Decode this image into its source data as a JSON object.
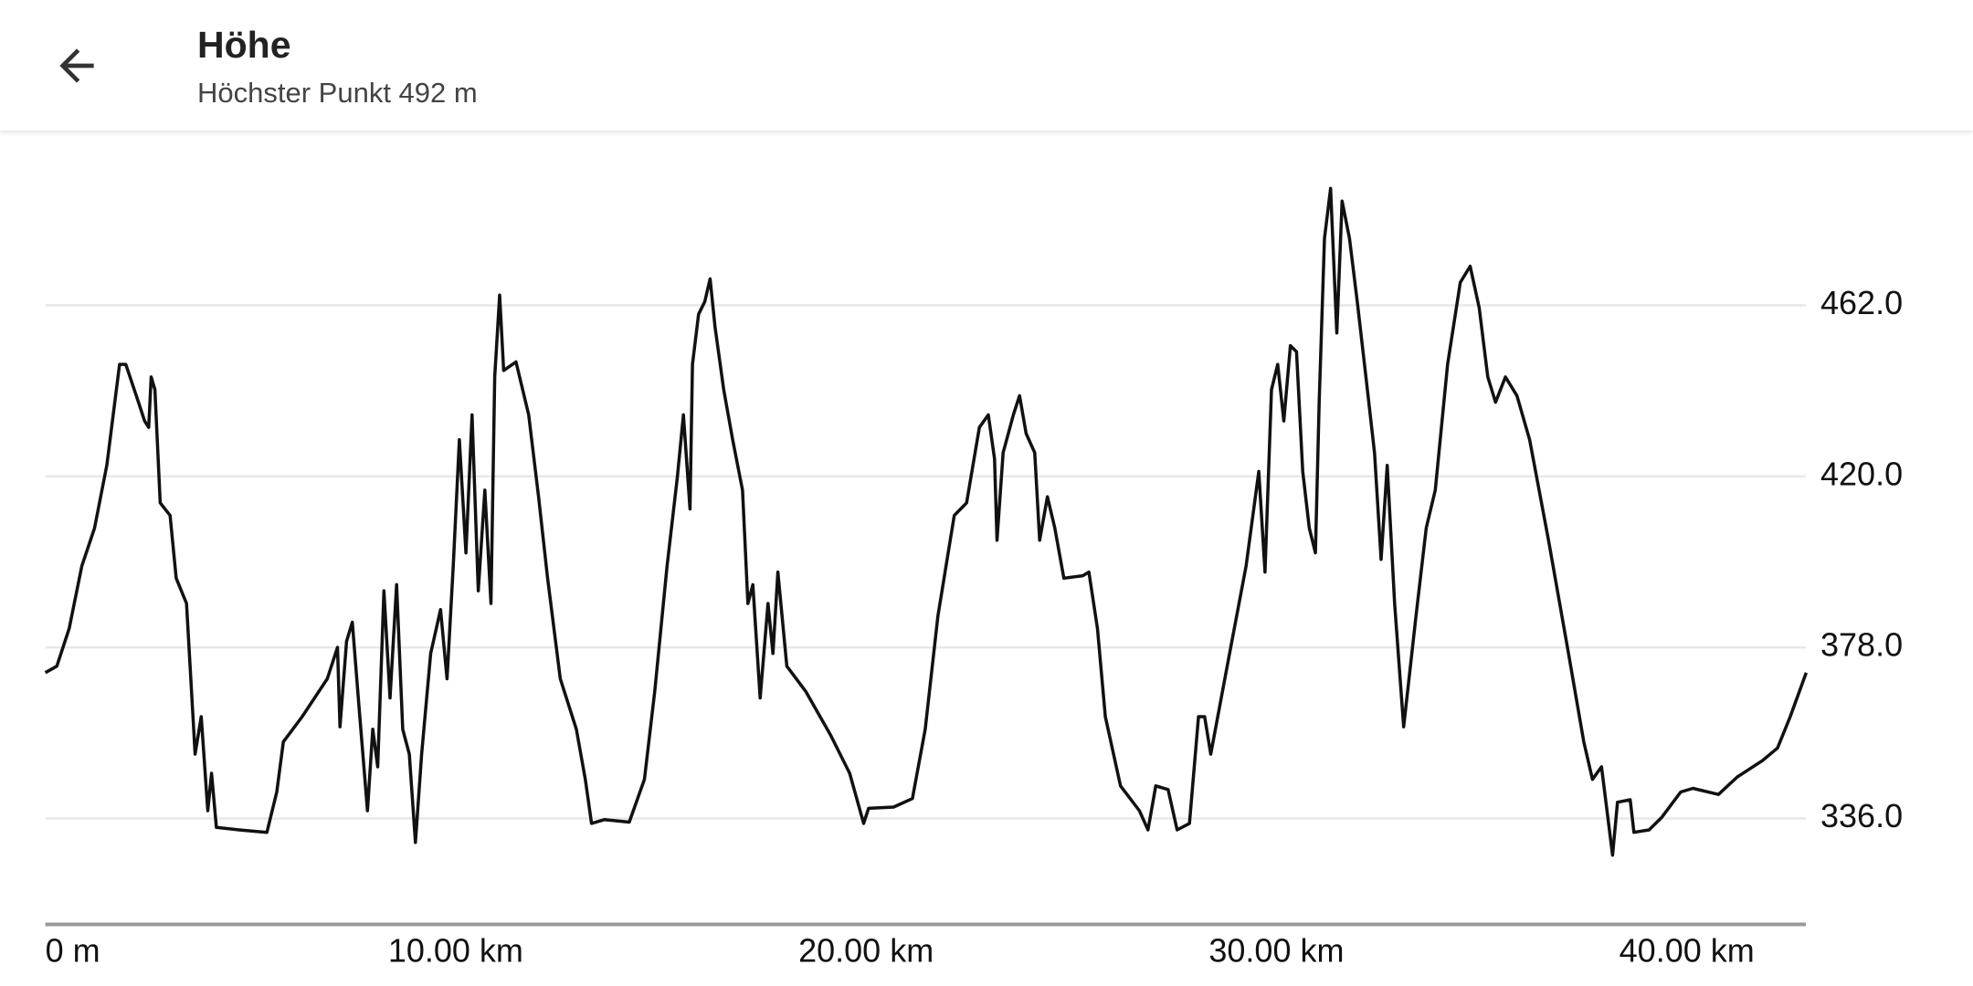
{
  "header": {
    "title": "Höhe",
    "subtitle": "Höchster Punkt 492 m"
  },
  "chart_data": {
    "type": "line",
    "color": "#111111",
    "grid": true,
    "xlim": [
      0,
      42.9
    ],
    "ylim": [
      310,
      503
    ],
    "xticks": [
      {
        "value": 0,
        "label": "0 m"
      },
      {
        "value": 10,
        "label": "10.00 km"
      },
      {
        "value": 20,
        "label": "20.00 km"
      },
      {
        "value": 30,
        "label": "30.00 km"
      },
      {
        "value": 40,
        "label": "40.00 km"
      }
    ],
    "yticks": [
      {
        "value": 336,
        "label": "336.0"
      },
      {
        "value": 378,
        "label": "378.0"
      },
      {
        "value": 420,
        "label": "420.0"
      },
      {
        "value": 462,
        "label": "462.0"
      }
    ],
    "x": [
      0,
      0.28,
      0.58,
      0.89,
      1.2,
      1.5,
      1.81,
      1.96,
      2.27,
      2.42,
      2.52,
      2.58,
      2.67,
      2.8,
      3.04,
      3.19,
      3.44,
      3.65,
      3.8,
      3.96,
      4.05,
      4.17,
      4.72,
      5.4,
      5.64,
      5.8,
      6.26,
      6.87,
      7.12,
      7.18,
      7.34,
      7.48,
      7.64,
      7.85,
      7.98,
      8.1,
      8.25,
      8.4,
      8.56,
      8.71,
      8.87,
      9.02,
      9.17,
      9.39,
      9.63,
      9.79,
      9.94,
      10.09,
      10.25,
      10.4,
      10.55,
      10.71,
      10.86,
      10.95,
      11.07,
      11.17,
      11.47,
      11.78,
      12.02,
      12.24,
      12.55,
      12.94,
      13.16,
      13.31,
      13.62,
      14.23,
      14.6,
      14.85,
      15.15,
      15.4,
      15.55,
      15.71,
      15.77,
      15.92,
      16.07,
      16.2,
      16.32,
      16.53,
      16.75,
      16.99,
      17.12,
      17.24,
      17.42,
      17.61,
      17.73,
      17.85,
      18.07,
      18.53,
      19.14,
      19.6,
      19.94,
      20.06,
      20.67,
      21.13,
      21.44,
      21.75,
      22.15,
      22.45,
      22.76,
      22.98,
      23.13,
      23.19,
      23.34,
      23.59,
      23.74,
      23.9,
      24.11,
      24.23,
      24.42,
      24.6,
      24.82,
      25.28,
      25.43,
      25.64,
      25.83,
      26.2,
      26.66,
      26.87,
      27.06,
      27.36,
      27.58,
      27.88,
      28.1,
      28.25,
      28.4,
      28.8,
      29.26,
      29.57,
      29.72,
      29.88,
      30.03,
      30.18,
      30.34,
      30.49,
      30.64,
      30.8,
      30.95,
      31.04,
      31.17,
      31.32,
      31.47,
      31.6,
      31.78,
      31.97,
      32.18,
      32.39,
      32.55,
      32.7,
      32.88,
      33.1,
      33.4,
      33.65,
      33.87,
      34.17,
      34.48,
      34.72,
      34.94,
      35.15,
      35.34,
      35.58,
      35.86,
      36.17,
      36.63,
      37.09,
      37.49,
      37.7,
      37.92,
      38.19,
      38.31,
      38.62,
      38.71,
      39.08,
      39.39,
      39.85,
      40.15,
      40.77,
      41.23,
      41.84,
      42.21,
      42.52,
      42.91
    ],
    "values": [
      371.8,
      373.4,
      382.6,
      398,
      407.3,
      422.8,
      447.5,
      447.5,
      438.2,
      433.6,
      432,
      444.4,
      441.3,
      413.5,
      410.4,
      395,
      388.8,
      351.8,
      361,
      337.9,
      347.1,
      333.8,
      333.2,
      332.6,
      342.5,
      354.8,
      361,
      370.3,
      378,
      358.5,
      379.5,
      384.2,
      364.1,
      337.9,
      357.9,
      348.7,
      391.9,
      365.6,
      393.4,
      357.9,
      351.8,
      330.1,
      351.8,
      376.5,
      387.3,
      370.3,
      398,
      429,
      401.2,
      435.1,
      391.9,
      416.6,
      388.8,
      444.4,
      464.5,
      446,
      448.1,
      435.1,
      415,
      395,
      370.3,
      357.9,
      345.6,
      334.8,
      335.7,
      335.1,
      345.6,
      367.2,
      398,
      419.7,
      435.1,
      412,
      447.5,
      459.8,
      462.9,
      468.5,
      456.7,
      441.3,
      429,
      416.6,
      388.8,
      393.4,
      365.6,
      388.8,
      376.5,
      396.5,
      373.4,
      367.2,
      356.4,
      347.1,
      334.8,
      338.5,
      338.8,
      340.9,
      357.9,
      385.7,
      410.4,
      413.5,
      432,
      435.1,
      424.3,
      404.3,
      425.8,
      435.1,
      439.8,
      430.5,
      425.8,
      404.3,
      415,
      407.3,
      395,
      395.6,
      396.5,
      382.6,
      361,
      344,
      337.9,
      333.2,
      344,
      343.1,
      333.2,
      334.8,
      361,
      361,
      351.8,
      373.4,
      398,
      421.2,
      396.5,
      441.3,
      447.5,
      433.6,
      452.1,
      450.6,
      421.2,
      407.3,
      401.2,
      438.2,
      478.4,
      490.7,
      455.2,
      487.6,
      478.4,
      462.9,
      444.4,
      425.8,
      399.6,
      422.7,
      388.8,
      358.5,
      385.7,
      407.3,
      416.6,
      447.5,
      467.6,
      471.6,
      461.4,
      444.4,
      438.2,
      444.4,
      439.8,
      429,
      404.3,
      378,
      354.8,
      345.6,
      348.7,
      327,
      340,
      340.6,
      332.6,
      333.2,
      336.3,
      342.5,
      343.4,
      341.9,
      346.2,
      350.2,
      353.3,
      361,
      371.8
    ]
  }
}
